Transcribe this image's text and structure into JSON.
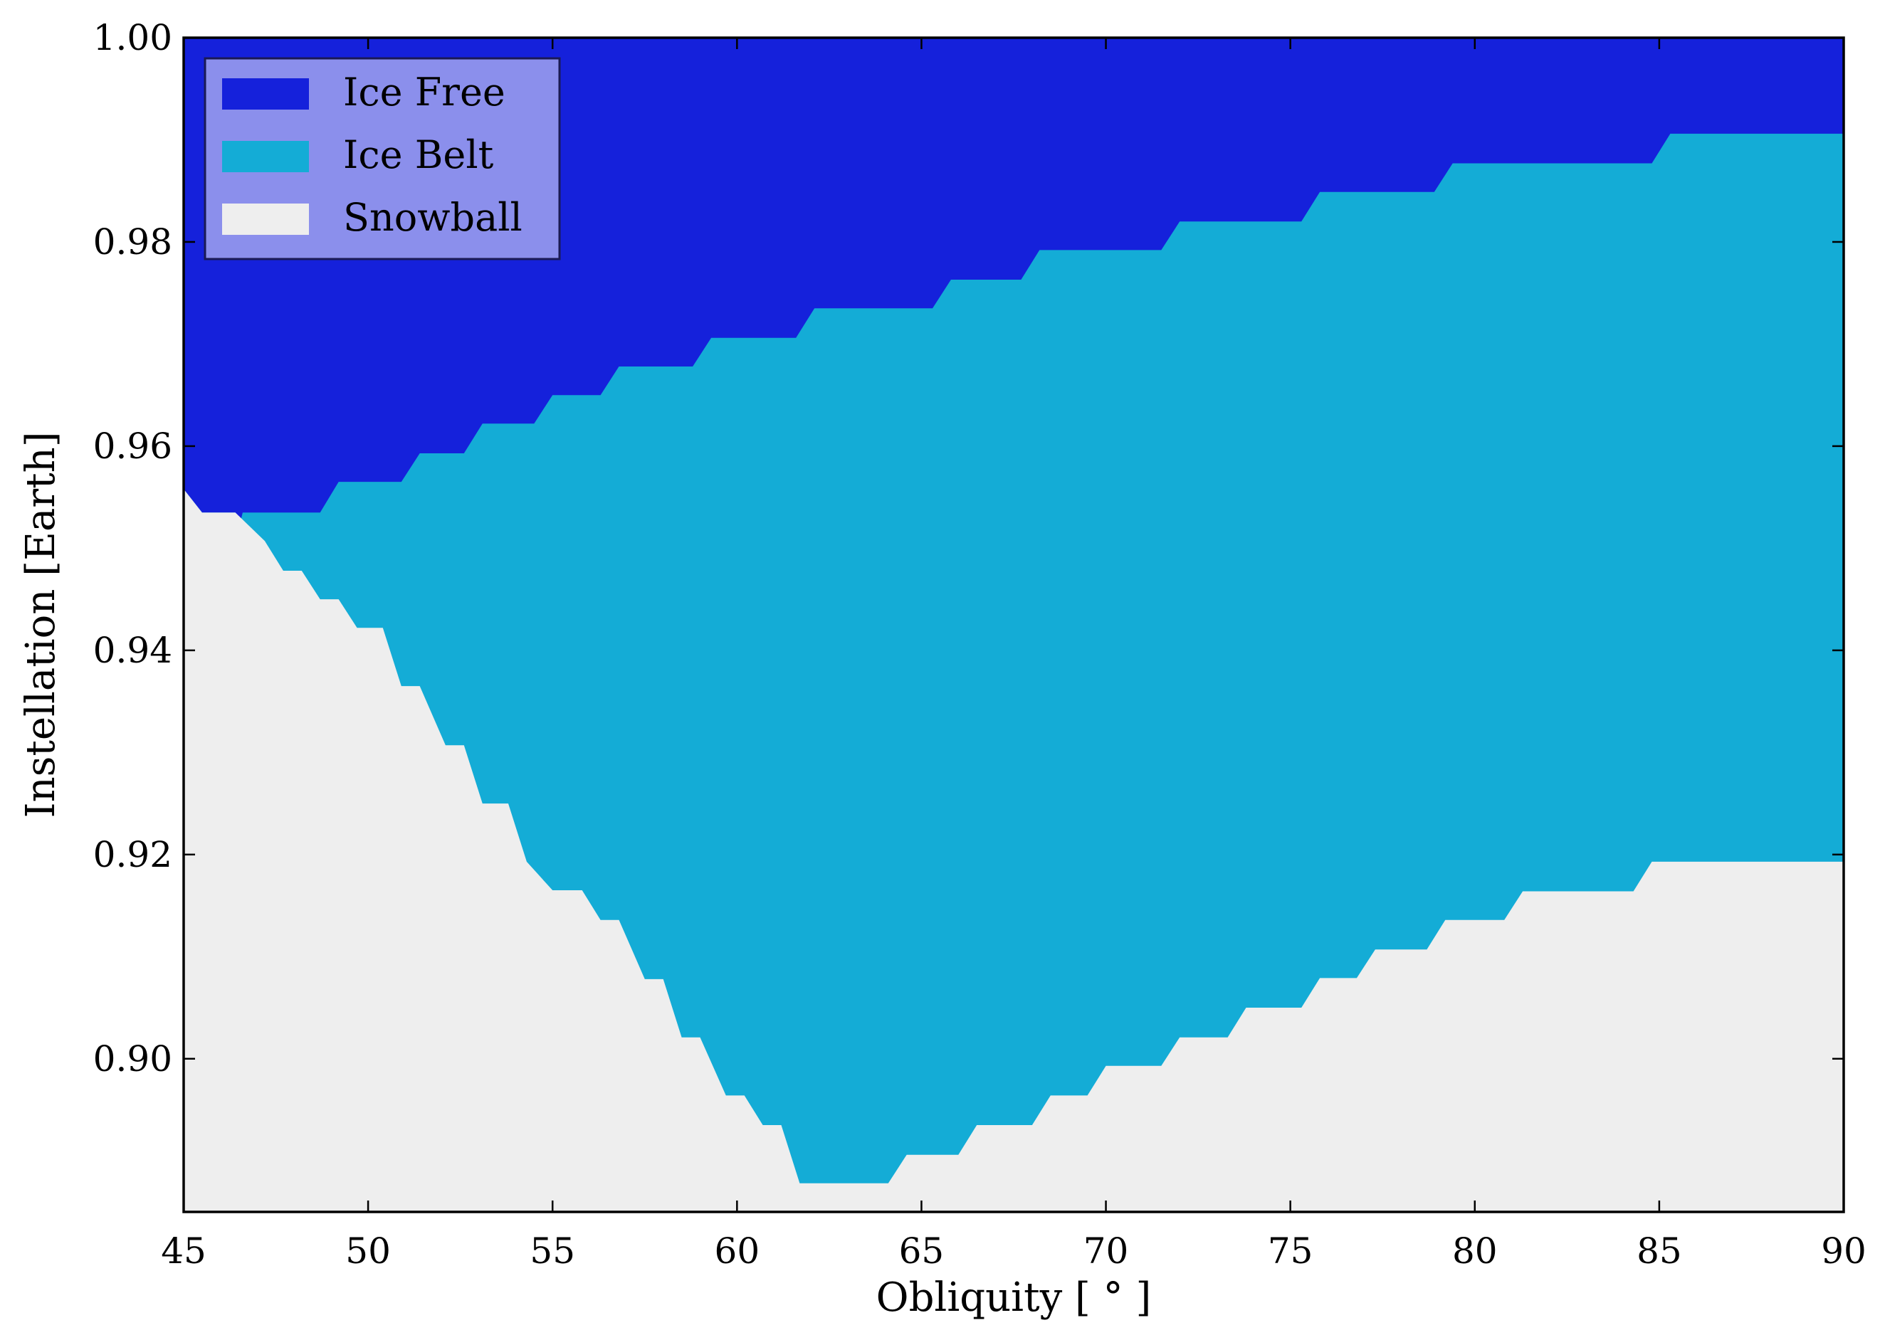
{
  "chart_data": {
    "type": "area",
    "title": "",
    "xlabel": "Obliquity [$^\\circ$]",
    "xlabel_display": "Obliquity [ ° ]",
    "ylabel": "Instellation [Earth]",
    "xlim": [
      45,
      90
    ],
    "ylim": [
      0.885,
      1.0
    ],
    "xticks": [
      45,
      50,
      55,
      60,
      65,
      70,
      75,
      80,
      85,
      90
    ],
    "xtick_labels": [
      "45",
      "50",
      "55",
      "60",
      "65",
      "70",
      "75",
      "80",
      "85",
      "90"
    ],
    "yticks": [
      0.9,
      0.92,
      0.94,
      0.96,
      0.98,
      1.0
    ],
    "ytick_labels": [
      "0.90",
      "0.92",
      "0.94",
      "0.96",
      "0.98",
      "1.00"
    ],
    "grid": false,
    "legend_position": "top-left",
    "series": [
      {
        "name": "Ice Free",
        "color": "#1521db"
      },
      {
        "name": "Ice Belt",
        "color": "#14acd6"
      },
      {
        "name": "Snowball",
        "color": "#eeeeee"
      }
    ],
    "boundaries": {
      "ice_free_lower": {
        "x": [
          45,
          45.5,
          46.4,
          46.5,
          46.6,
          47.2,
          48.7,
          49.2,
          50.9,
          51.4,
          52.6,
          53.1,
          54.5,
          55.0,
          56.3,
          56.8,
          58.8,
          59.3,
          61.6,
          62.1,
          63.0,
          65.3,
          65.8,
          67.7,
          68.2,
          69.5,
          70.0,
          71.5,
          72.0,
          73.3,
          73.8,
          75.3,
          75.8,
          78.9,
          79.4,
          84.8,
          85.3,
          90
        ],
        "y": [
          0.9558,
          0.9535,
          0.9535,
          0.952,
          0.9535,
          0.9535,
          0.9535,
          0.9565,
          0.9565,
          0.9593,
          0.9593,
          0.9622,
          0.9622,
          0.965,
          0.965,
          0.9678,
          0.9678,
          0.9706,
          0.9706,
          0.9735,
          0.9735,
          0.9735,
          0.9763,
          0.9763,
          0.9792,
          0.9792,
          0.9792,
          0.9792,
          0.982,
          0.982,
          0.982,
          0.982,
          0.9849,
          0.9849,
          0.9877,
          0.9877,
          0.9906,
          0.9906
        ]
      },
      "snowball_upper": {
        "x": [
          45,
          45.5,
          46.4,
          47.2,
          47.7,
          48.2,
          48.7,
          49.2,
          49.7,
          50.4,
          50.9,
          51.4,
          52.1,
          52.6,
          53.1,
          53.8,
          54.3,
          55.0,
          55.8,
          56.3,
          56.8,
          57.5,
          58.0,
          58.5,
          59.0,
          59.7,
          60.2,
          60.7,
          61.2,
          61.7,
          62.2,
          62.7,
          64.1,
          64.6,
          66.0,
          66.5,
          68.0,
          68.5,
          69.5,
          70.0,
          71.5,
          72.0,
          73.3,
          73.8,
          75.3,
          75.8,
          76.8,
          77.3,
          78.7,
          79.2,
          80.8,
          81.3,
          84.3,
          84.8,
          90
        ],
        "y": [
          0.9558,
          0.9535,
          0.9535,
          0.9507,
          0.9478,
          0.9478,
          0.945,
          0.945,
          0.9422,
          0.9422,
          0.9365,
          0.9365,
          0.9307,
          0.9307,
          0.925,
          0.925,
          0.9193,
          0.9165,
          0.9165,
          0.9136,
          0.9136,
          0.9078,
          0.9078,
          0.9021,
          0.9021,
          0.8964,
          0.8964,
          0.8935,
          0.8935,
          0.8878,
          0.8878,
          0.8878,
          0.8878,
          0.8906,
          0.8906,
          0.8935,
          0.8935,
          0.8964,
          0.8964,
          0.8993,
          0.8993,
          0.9021,
          0.9021,
          0.905,
          0.905,
          0.9079,
          0.9079,
          0.9107,
          0.9107,
          0.9136,
          0.9136,
          0.9164,
          0.9164,
          0.9193,
          0.9193
        ]
      }
    }
  }
}
